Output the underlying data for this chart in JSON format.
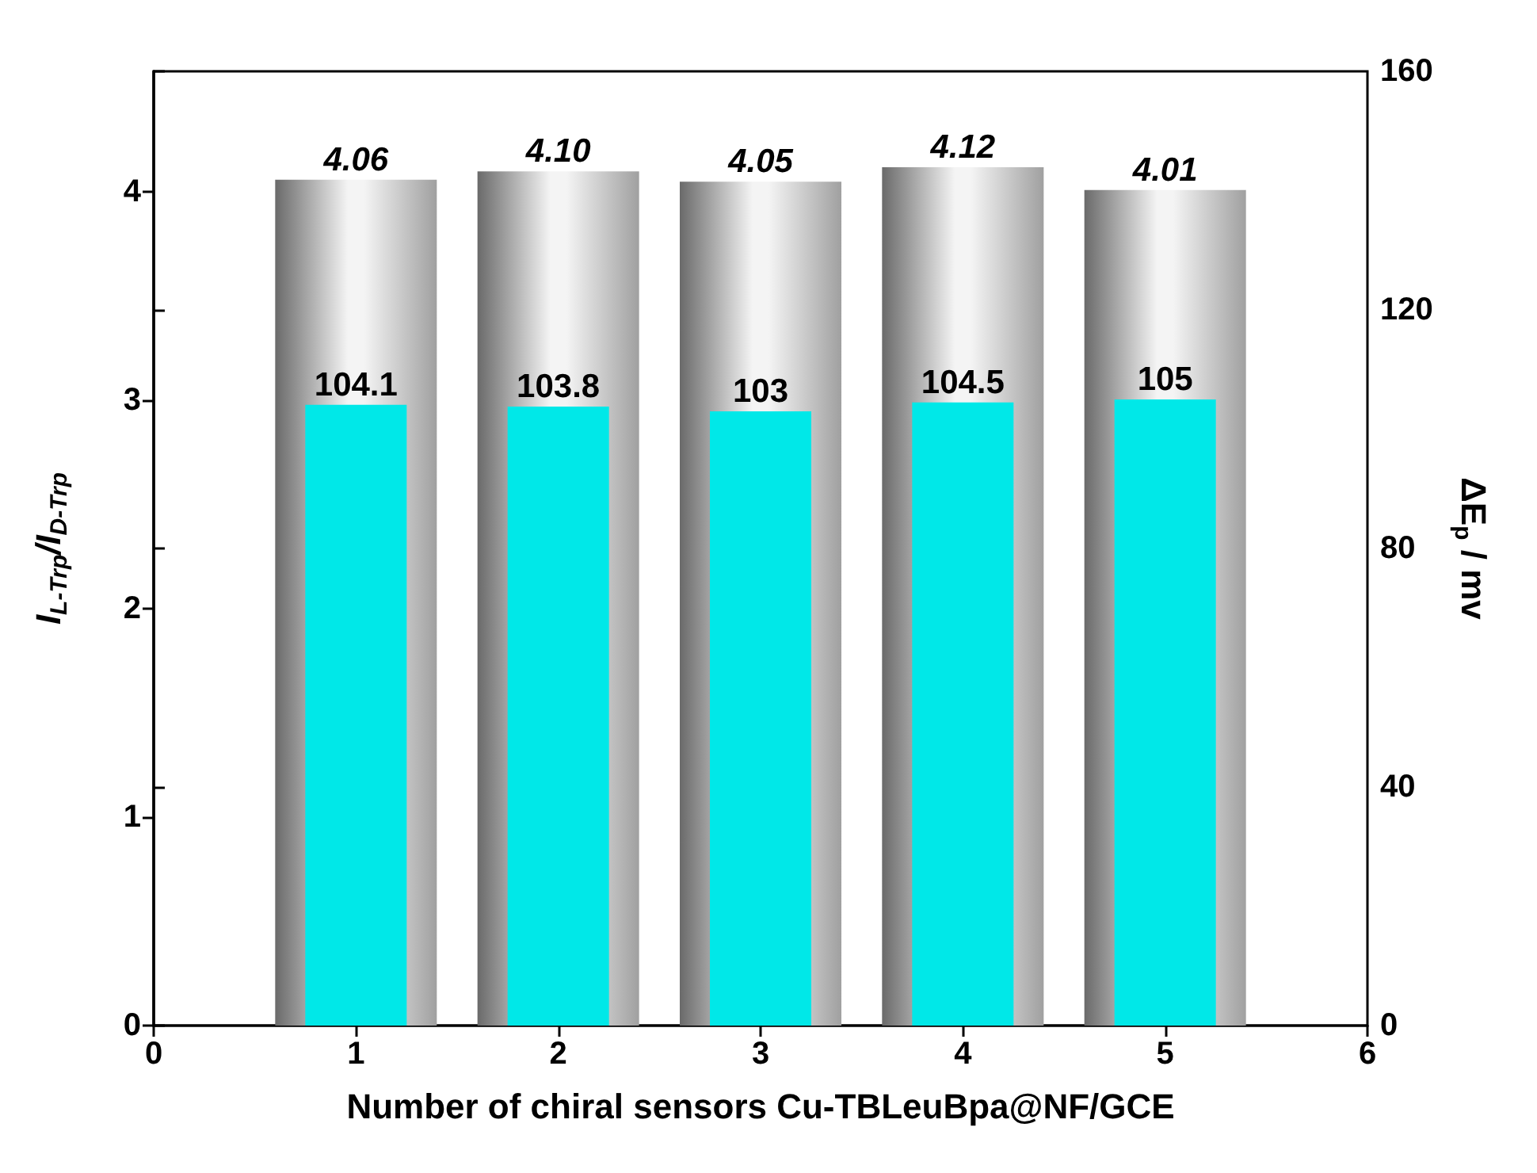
{
  "chart_data": {
    "type": "bar",
    "xlabel": "Number of chiral sensors Cu-TBLeuBpa@NF/GCE",
    "ylabel": "I$_{L-Trp}$/I$_{D-Trp}$",
    "y2label": "ΔE$_{p}$ / mv",
    "x": [
      1,
      2,
      3,
      4,
      5
    ],
    "xlim": [
      0,
      6
    ],
    "xticks": [
      0,
      1,
      2,
      3,
      4,
      5,
      6
    ],
    "ylim": [
      0,
      4.58
    ],
    "yticks": [
      0,
      1,
      2,
      3,
      4
    ],
    "y2lim": [
      0,
      160
    ],
    "y2ticks": [
      0,
      40,
      80,
      120,
      160
    ],
    "series": [
      {
        "color": "#a0a0a0",
        "values": [
          4.06,
          4.1,
          4.05,
          4.12,
          4.01
        ],
        "value_labels": [
          "4.06",
          "4.10",
          "4.05",
          "4.12",
          "4.01"
        ]
      },
      {
        "axis": "y2",
        "color": "#00e8e8",
        "values": [
          104.1,
          103.8,
          103,
          104.5,
          105
        ],
        "value_labels": [
          "104.1",
          "103.8",
          "103",
          "104.5",
          "105"
        ]
      }
    ],
    "grid": false
  }
}
